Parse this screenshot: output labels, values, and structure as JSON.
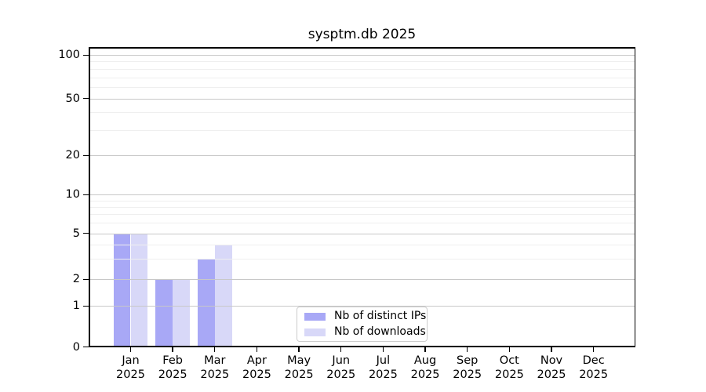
{
  "chart_data": {
    "type": "bar",
    "title": "sysptm.db 2025",
    "months": [
      "Jan",
      "Feb",
      "Mar",
      "Apr",
      "May",
      "Jun",
      "Jul",
      "Aug",
      "Sep",
      "Oct",
      "Nov",
      "Dec"
    ],
    "year": "2025",
    "series": [
      {
        "name": "Nb of distinct IPs",
        "color": "#a8a8f6",
        "values": [
          5,
          2,
          3,
          null,
          null,
          null,
          null,
          null,
          null,
          null,
          null,
          null
        ]
      },
      {
        "name": "Nb of downloads",
        "color": "#d8d8f8",
        "values": [
          5,
          2,
          4,
          null,
          null,
          null,
          null,
          null,
          null,
          null,
          null,
          null
        ]
      }
    ],
    "y_ticks": [
      0,
      1,
      2,
      5,
      10,
      20,
      50,
      100
    ],
    "y_minor_gridlines": [
      3,
      4,
      6,
      7,
      8,
      9,
      30,
      40,
      60,
      70,
      80,
      90
    ],
    "ylim": [
      0,
      110
    ],
    "y_scale": "symlog",
    "grid": true,
    "legend_position": "lower center"
  },
  "colors": {
    "grid_major": "#c8c8c8",
    "grid_minor": "#efefef",
    "spine": "#000000",
    "background": "#ffffff"
  }
}
